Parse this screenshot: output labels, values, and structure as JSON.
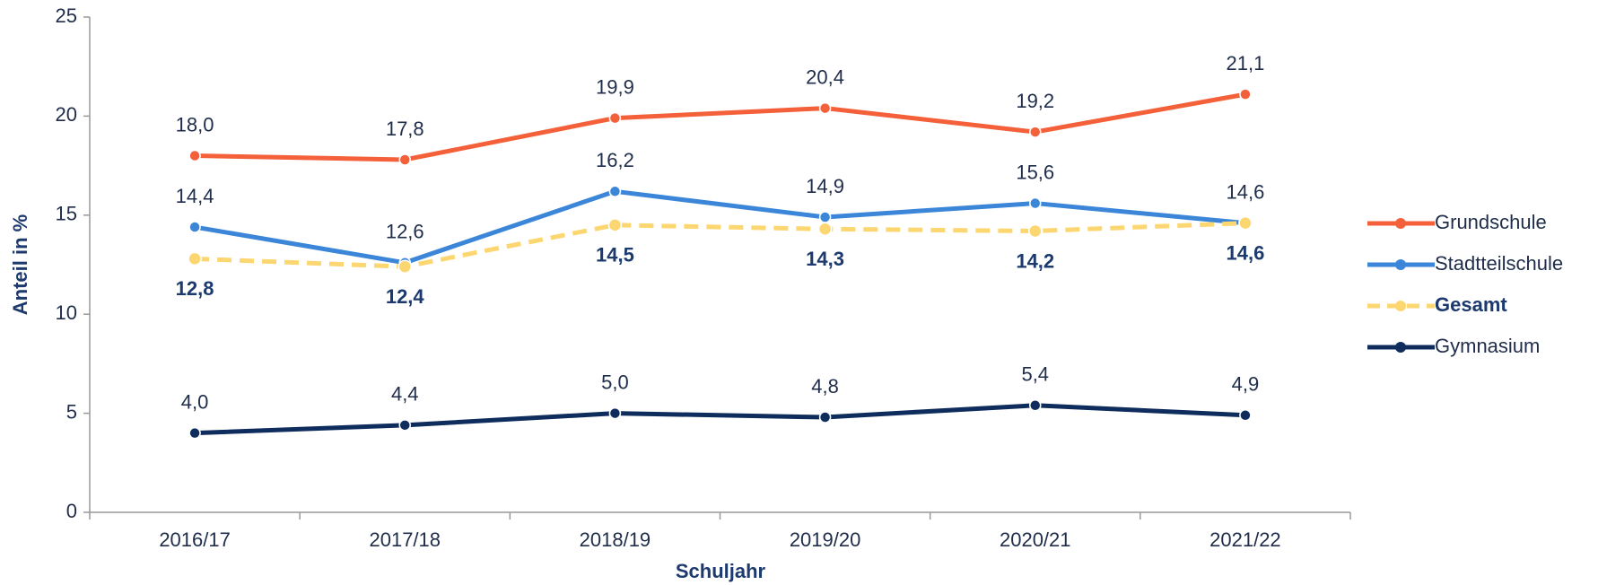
{
  "chart_data": {
    "type": "line",
    "x_label": "Schuljahr",
    "y_label": "Anteil in %",
    "categories": [
      "2016/17",
      "2017/18",
      "2018/19",
      "2019/20",
      "2020/21",
      "2021/22"
    ],
    "ylim": [
      0,
      25
    ],
    "yticks": [
      0,
      5,
      10,
      15,
      20,
      25
    ],
    "grid": false,
    "legend": "right",
    "series": [
      {
        "name": "Grundschule",
        "color": "#f4603a",
        "values": [
          18.0,
          17.8,
          19.9,
          20.4,
          19.2,
          21.1
        ],
        "value_labels": [
          "18,0",
          "17,8",
          "19,9",
          "20,4",
          "19,2",
          "21,1"
        ]
      },
      {
        "name": "Stadtteilschule",
        "color": "#3b86d8",
        "values": [
          14.4,
          12.6,
          16.2,
          14.9,
          15.6,
          14.6
        ],
        "value_labels": [
          "14,4",
          "12,6",
          "16,2",
          "14,9",
          "15,6",
          "14,6"
        ]
      },
      {
        "name": "Gesamt",
        "color": "#fcd670",
        "dashed": true,
        "bold": true,
        "values": [
          12.8,
          12.4,
          14.5,
          14.3,
          14.2,
          14.6
        ],
        "value_labels": [
          "12,8",
          "12,4",
          "14,5",
          "14,3",
          "14,2",
          "14,6"
        ]
      },
      {
        "name": "Gymnasium",
        "color": "#0f2d5c",
        "values": [
          4.0,
          4.4,
          5.0,
          4.8,
          5.4,
          4.9
        ],
        "value_labels": [
          "4,0",
          "4,4",
          "5,0",
          "4,8",
          "5,4",
          "4,9"
        ]
      }
    ]
  }
}
